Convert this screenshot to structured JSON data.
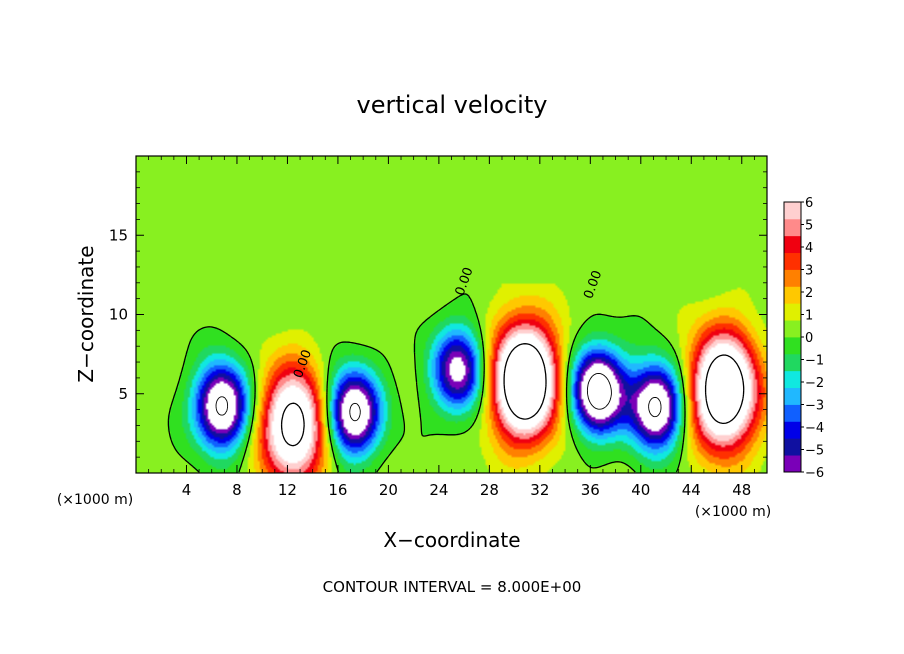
{
  "chart_data": {
    "type": "heatmap",
    "title": "vertical velocity",
    "xlabel": "X−coordinate",
    "ylabel": "Z−coordinate",
    "x_unit_left": "(×1000 m)",
    "x_unit_right": "(×1000 m)",
    "xlim": [
      0,
      50
    ],
    "ylim": [
      0,
      20
    ],
    "x_ticks": [
      4,
      8,
      12,
      16,
      20,
      24,
      28,
      32,
      36,
      40,
      44,
      48
    ],
    "x_tick_labels": [
      "4",
      "8",
      "12",
      "16",
      "20",
      "24",
      "28",
      "32",
      "36",
      "40",
      "44",
      "48"
    ],
    "y_ticks": [
      5,
      10,
      15
    ],
    "y_tick_labels": [
      "5",
      "10",
      "15"
    ],
    "colorbar": {
      "min": -6,
      "max": 6,
      "tick_values": [
        6,
        5,
        4,
        3,
        2,
        1,
        0,
        -1,
        -2,
        -3,
        -4,
        -5,
        -6
      ],
      "tick_labels": [
        "6",
        "5",
        "4",
        "3",
        "2",
        "1",
        "0",
        "−1",
        "−2",
        "−3",
        "−4",
        "−5",
        "−6"
      ],
      "colors": [
        "#7a00b8",
        "#1010a0",
        "#0000e8",
        "#1060ff",
        "#20b8ff",
        "#10e8e0",
        "#20d860",
        "#30e020",
        "#88f020",
        "#e0f000",
        "#ffc800",
        "#ff8000",
        "#ff3000",
        "#f00010",
        "#ff8a8a",
        "#ffd0d0"
      ],
      "beyond_color": "#ffffff"
    },
    "cells": [
      {
        "name": "updraft",
        "x": 12.5,
        "z": 3.0,
        "peak": 9
      },
      {
        "name": "updraft",
        "x": 30.8,
        "z": 5.8,
        "peak": 12
      },
      {
        "name": "updraft",
        "x": 46.6,
        "z": 5.2,
        "peak": 11
      },
      {
        "name": "downdraft",
        "x": 6.8,
        "z": 4.2,
        "peak": -9
      },
      {
        "name": "downdraft",
        "x": 17.2,
        "z": 3.8,
        "peak": -9
      },
      {
        "name": "downdraft",
        "x": 25.6,
        "z": 6.5,
        "peak": -7
      },
      {
        "name": "downdraft",
        "x": 36.6,
        "z": 5.2,
        "peak": -10
      },
      {
        "name": "downdraft",
        "x": 41.2,
        "z": 4.2,
        "peak": -9
      }
    ],
    "contour_label": "0.00",
    "annotation": "CONTOUR INTERVAL = 8.000E+00"
  }
}
